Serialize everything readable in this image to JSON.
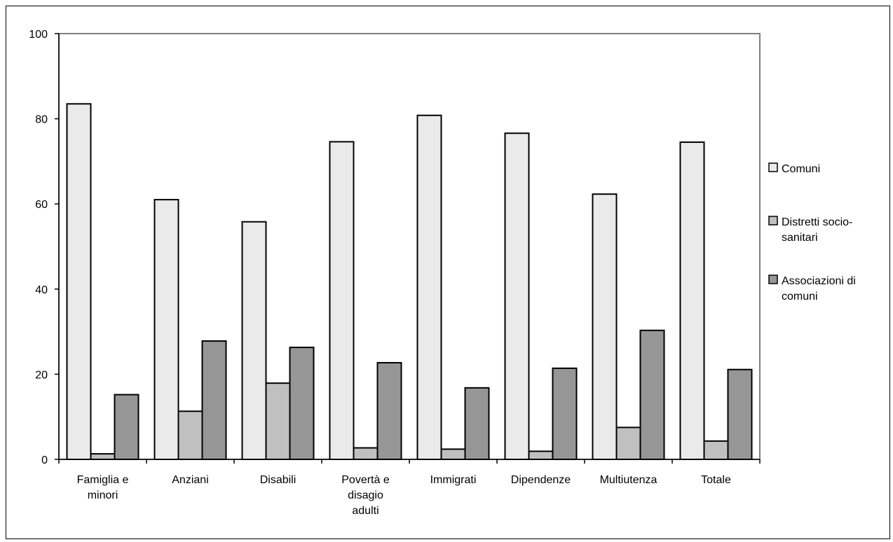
{
  "chart_data": {
    "type": "bar",
    "categories": [
      [
        "Famiglia e",
        "minori"
      ],
      [
        "Anziani"
      ],
      [
        "Disabili"
      ],
      [
        "Povertà e",
        "disagio",
        "adulti"
      ],
      [
        "Immigrati"
      ],
      [
        "Dipendenze"
      ],
      [
        "Multiutenza"
      ],
      [
        "Totale"
      ]
    ],
    "series": [
      {
        "name": "Comuni",
        "legend_lines": [
          "Comuni"
        ],
        "color": "#eaeaea",
        "values": [
          83.5,
          61.0,
          55.8,
          74.6,
          80.8,
          76.6,
          62.3,
          74.5
        ]
      },
      {
        "name": "Distretti socio-sanitari",
        "legend_lines": [
          "Distretti socio-",
          "sanitari"
        ],
        "color": "#c0c0c0",
        "values": [
          1.3,
          11.3,
          17.9,
          2.7,
          2.4,
          1.9,
          7.5,
          4.3
        ]
      },
      {
        "name": "Associazioni di comuni",
        "legend_lines": [
          "Associazioni di",
          "comuni"
        ],
        "color": "#969696",
        "values": [
          15.2,
          27.8,
          26.3,
          22.7,
          16.8,
          21.4,
          30.3,
          21.1
        ]
      }
    ],
    "ylim": [
      0,
      100
    ],
    "yticks": [
      0,
      20,
      40,
      60,
      80,
      100
    ],
    "title": "",
    "xlabel": "",
    "ylabel": "",
    "grid": false,
    "legend_position": "right"
  }
}
